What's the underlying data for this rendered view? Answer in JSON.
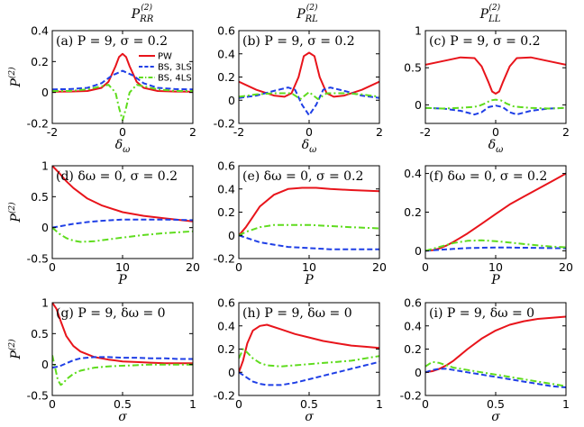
{
  "figure": {
    "column_titles": [
      "P_RR^(2)",
      "P_RL^(2)",
      "P_LL^(2)"
    ]
  },
  "legend": [
    "PW",
    "BS, 3LS",
    "BS, 4LS"
  ],
  "colors": {
    "PW": "#e8141b",
    "BS, 3LS": "#1f3fe6",
    "BS, 4LS": "#5fdc1e"
  },
  "chart_data": [
    {
      "id": "a",
      "type": "line",
      "annotation": "(a) P = 9, σ = 0.2",
      "xlabel": "δω",
      "ylabel": "P^(2)",
      "xlim": [
        -2,
        2
      ],
      "ylim": [
        -0.2,
        0.4
      ],
      "xticks": [
        -2,
        0,
        2
      ],
      "yticks": [
        -0.2,
        0,
        0.2,
        0.4
      ],
      "series": [
        {
          "name": "PW",
          "x": [
            -2,
            -1.5,
            -1,
            -0.6,
            -0.4,
            -0.2,
            -0.1,
            0,
            0.1,
            0.2,
            0.4,
            0.6,
            1,
            1.5,
            2
          ],
          "values": [
            0.005,
            0.006,
            0.01,
            0.03,
            0.07,
            0.17,
            0.23,
            0.25,
            0.23,
            0.17,
            0.07,
            0.03,
            0.01,
            0.006,
            0.005
          ]
        },
        {
          "name": "BS, 3LS",
          "x": [
            -2,
            -1.5,
            -1,
            -0.6,
            -0.3,
            0,
            0.3,
            0.6,
            1,
            1.5,
            2
          ],
          "values": [
            0.02,
            0.022,
            0.03,
            0.06,
            0.11,
            0.14,
            0.11,
            0.06,
            0.03,
            0.022,
            0.02
          ]
        },
        {
          "name": "BS, 4LS",
          "x": [
            -2,
            -1.5,
            -1,
            -0.6,
            -0.4,
            -0.2,
            -0.1,
            0,
            0.1,
            0.2,
            0.4,
            0.6,
            1,
            1.5,
            2
          ],
          "values": [
            0.01,
            0.01,
            0.02,
            0.04,
            0.05,
            0.0,
            -0.1,
            -0.18,
            -0.1,
            0.0,
            0.05,
            0.04,
            0.02,
            0.01,
            0.01
          ]
        }
      ]
    },
    {
      "id": "b",
      "type": "line",
      "annotation": "(b) P = 9, σ = 0.2",
      "xlabel": "δω",
      "ylabel": "",
      "xlim": [
        -2,
        2
      ],
      "ylim": [
        -0.2,
        0.6
      ],
      "xticks": [
        -2,
        0,
        2
      ],
      "yticks": [
        -0.2,
        0,
        0.2,
        0.4,
        0.6
      ],
      "series": [
        {
          "name": "PW",
          "x": [
            -2,
            -1.5,
            -1,
            -0.7,
            -0.5,
            -0.3,
            -0.15,
            0,
            0.15,
            0.3,
            0.5,
            0.7,
            1,
            1.5,
            2
          ],
          "values": [
            0.16,
            0.09,
            0.04,
            0.03,
            0.06,
            0.2,
            0.38,
            0.41,
            0.38,
            0.2,
            0.06,
            0.03,
            0.04,
            0.09,
            0.16
          ]
        },
        {
          "name": "BS, 3LS",
          "x": [
            -2,
            -1.5,
            -1,
            -0.6,
            -0.4,
            -0.2,
            0,
            0.2,
            0.4,
            0.6,
            1,
            1.5,
            2
          ],
          "values": [
            0.02,
            0.04,
            0.08,
            0.11,
            0.09,
            -0.04,
            -0.13,
            -0.04,
            0.09,
            0.11,
            0.08,
            0.04,
            0.02
          ]
        },
        {
          "name": "BS, 4LS",
          "x": [
            -2,
            -1.5,
            -1,
            -0.7,
            -0.5,
            -0.25,
            0,
            0.25,
            0.5,
            0.7,
            1,
            1.5,
            2
          ],
          "values": [
            0.03,
            0.05,
            0.06,
            0.06,
            0.06,
            0.01,
            0.07,
            0.01,
            0.06,
            0.06,
            0.06,
            0.05,
            0.03
          ]
        }
      ]
    },
    {
      "id": "c",
      "type": "line",
      "annotation": "(c) P = 9, σ = 0.2",
      "xlabel": "δω",
      "ylabel": "",
      "xlim": [
        -2,
        2
      ],
      "ylim": [
        -0.25,
        1
      ],
      "xticks": [
        -2,
        0,
        2
      ],
      "yticks": [
        0,
        0.5,
        1
      ],
      "series": [
        {
          "name": "PW",
          "x": [
            -2,
            -1.5,
            -1,
            -0.6,
            -0.4,
            -0.2,
            -0.1,
            0,
            0.1,
            0.2,
            0.4,
            0.6,
            1,
            1.5,
            2
          ],
          "values": [
            0.54,
            0.59,
            0.64,
            0.63,
            0.52,
            0.3,
            0.18,
            0.15,
            0.18,
            0.3,
            0.52,
            0.63,
            0.64,
            0.59,
            0.54
          ]
        },
        {
          "name": "BS, 3LS",
          "x": [
            -2,
            -1.5,
            -1,
            -0.6,
            -0.4,
            -0.2,
            0,
            0.2,
            0.4,
            0.6,
            1,
            1.5,
            2
          ],
          "values": [
            -0.04,
            -0.05,
            -0.08,
            -0.13,
            -0.1,
            -0.03,
            -0.01,
            -0.03,
            -0.1,
            -0.13,
            -0.08,
            -0.05,
            -0.04
          ]
        },
        {
          "name": "BS, 4LS",
          "x": [
            -2,
            -1.5,
            -1,
            -0.7,
            -0.5,
            -0.3,
            -0.15,
            0,
            0.15,
            0.3,
            0.5,
            0.7,
            1,
            1.5,
            2
          ],
          "values": [
            -0.04,
            -0.05,
            -0.04,
            -0.03,
            -0.02,
            0.02,
            0.06,
            0.07,
            0.06,
            0.02,
            -0.02,
            -0.03,
            -0.04,
            -0.05,
            -0.04
          ]
        }
      ]
    },
    {
      "id": "d",
      "type": "line",
      "annotation": "(d) δω = 0, σ = 0.2",
      "xlabel": "P",
      "ylabel": "P^(2)",
      "xlim": [
        0,
        20
      ],
      "ylim": [
        -0.5,
        1
      ],
      "xticks": [
        0,
        10,
        20
      ],
      "yticks": [
        -0.5,
        0,
        0.5,
        1
      ],
      "series": [
        {
          "name": "PW",
          "x": [
            0,
            1,
            2,
            3,
            5,
            7,
            10,
            13,
            16,
            20
          ],
          "values": [
            1.0,
            0.88,
            0.75,
            0.64,
            0.47,
            0.36,
            0.25,
            0.19,
            0.15,
            0.1
          ]
        },
        {
          "name": "BS, 3LS",
          "x": [
            0,
            1,
            2,
            3,
            5,
            7,
            10,
            13,
            16,
            20
          ],
          "values": [
            0.0,
            0.02,
            0.04,
            0.06,
            0.09,
            0.11,
            0.13,
            0.13,
            0.13,
            0.12
          ]
        },
        {
          "name": "BS, 4LS",
          "x": [
            0,
            1,
            2,
            3,
            4,
            6,
            8,
            10,
            13,
            16,
            20
          ],
          "values": [
            0.0,
            -0.1,
            -0.17,
            -0.21,
            -0.23,
            -0.22,
            -0.19,
            -0.16,
            -0.12,
            -0.09,
            -0.06
          ]
        }
      ]
    },
    {
      "id": "e",
      "type": "line",
      "annotation": "(e) δω = 0, σ = 0.2",
      "xlabel": "P",
      "ylabel": "",
      "xlim": [
        0,
        20
      ],
      "ylim": [
        -0.2,
        0.6
      ],
      "xticks": [
        0,
        10,
        20
      ],
      "yticks": [
        -0.2,
        0,
        0.2,
        0.4,
        0.6
      ],
      "series": [
        {
          "name": "PW",
          "x": [
            0,
            1,
            2,
            3,
            5,
            7,
            9,
            11,
            13,
            16,
            20
          ],
          "values": [
            0.0,
            0.07,
            0.16,
            0.25,
            0.35,
            0.4,
            0.41,
            0.41,
            0.4,
            0.39,
            0.38
          ]
        },
        {
          "name": "BS, 3LS",
          "x": [
            0,
            1,
            2,
            3,
            5,
            7,
            10,
            13,
            16,
            20
          ],
          "values": [
            0.0,
            -0.02,
            -0.04,
            -0.06,
            -0.08,
            -0.1,
            -0.11,
            -0.12,
            -0.12,
            -0.12
          ]
        },
        {
          "name": "BS, 4LS",
          "x": [
            0,
            1,
            2,
            3,
            5,
            7,
            10,
            13,
            16,
            20
          ],
          "values": [
            0.0,
            0.03,
            0.05,
            0.07,
            0.09,
            0.09,
            0.09,
            0.08,
            0.07,
            0.06
          ]
        }
      ]
    },
    {
      "id": "f",
      "type": "line",
      "annotation": "(f) δω = 0, σ = 0.2",
      "xlabel": "P",
      "ylabel": "",
      "xlim": [
        0,
        20
      ],
      "ylim": [
        -0.04,
        0.44
      ],
      "xticks": [
        0,
        10,
        20
      ],
      "yticks": [
        0,
        0.2,
        0.4
      ],
      "series": [
        {
          "name": "PW",
          "x": [
            0,
            1,
            2,
            3,
            4,
            6,
            8,
            10,
            12,
            14,
            16,
            18,
            20
          ],
          "values": [
            0.0,
            0.003,
            0.012,
            0.027,
            0.046,
            0.09,
            0.14,
            0.19,
            0.24,
            0.28,
            0.32,
            0.36,
            0.4
          ]
        },
        {
          "name": "BS, 3LS",
          "x": [
            0,
            2,
            4,
            6,
            8,
            10,
            12,
            14,
            16,
            18,
            20
          ],
          "values": [
            0.0,
            0.005,
            0.01,
            0.014,
            0.016,
            0.017,
            0.017,
            0.016,
            0.015,
            0.014,
            0.013
          ]
        },
        {
          "name": "BS, 4LS",
          "x": [
            0,
            2,
            4,
            6,
            8,
            10,
            12,
            14,
            16,
            18,
            20
          ],
          "values": [
            0.0,
            0.02,
            0.04,
            0.052,
            0.054,
            0.05,
            0.043,
            0.035,
            0.028,
            0.022,
            0.018
          ]
        }
      ]
    },
    {
      "id": "g",
      "type": "line",
      "annotation": "(g) P = 9, δω = 0",
      "xlabel": "σ",
      "ylabel": "P^(2)",
      "xlim": [
        0,
        1
      ],
      "ylim": [
        -0.5,
        1
      ],
      "xticks": [
        0,
        0.5,
        1
      ],
      "yticks": [
        -0.5,
        0,
        0.5,
        1
      ],
      "series": [
        {
          "name": "PW",
          "x": [
            0,
            0.03,
            0.06,
            0.1,
            0.15,
            0.2,
            0.3,
            0.4,
            0.5,
            0.6,
            0.7,
            0.8,
            0.9,
            1.0
          ],
          "values": [
            1.0,
            0.9,
            0.7,
            0.46,
            0.3,
            0.21,
            0.12,
            0.08,
            0.05,
            0.04,
            0.03,
            0.02,
            0.02,
            0.02
          ]
        },
        {
          "name": "BS, 3LS",
          "x": [
            0,
            0.05,
            0.1,
            0.15,
            0.2,
            0.3,
            0.4,
            0.5,
            0.6,
            0.7,
            0.8,
            0.9,
            1.0
          ],
          "values": [
            -0.05,
            -0.03,
            0.02,
            0.07,
            0.1,
            0.12,
            0.12,
            0.11,
            0.11,
            0.1,
            0.1,
            0.09,
            0.09
          ]
        },
        {
          "name": "BS, 4LS",
          "x": [
            0,
            0.02,
            0.04,
            0.06,
            0.08,
            0.1,
            0.15,
            0.2,
            0.3,
            0.4,
            0.5,
            0.6,
            0.7,
            0.8,
            0.9,
            1.0
          ],
          "values": [
            0.15,
            -0.05,
            -0.25,
            -0.33,
            -0.3,
            -0.24,
            -0.15,
            -0.1,
            -0.05,
            -0.03,
            -0.02,
            -0.01,
            0.0,
            0.0,
            0.0,
            0.0
          ]
        }
      ]
    },
    {
      "id": "h",
      "type": "line",
      "annotation": "(h) P = 9, δω = 0",
      "xlabel": "σ",
      "ylabel": "",
      "xlim": [
        0,
        1
      ],
      "ylim": [
        -0.2,
        0.6
      ],
      "xticks": [
        0,
        0.5,
        1
      ],
      "yticks": [
        -0.2,
        0,
        0.2,
        0.4,
        0.6
      ],
      "series": [
        {
          "name": "PW",
          "x": [
            0,
            0.03,
            0.06,
            0.1,
            0.15,
            0.2,
            0.3,
            0.4,
            0.5,
            0.6,
            0.7,
            0.8,
            0.9,
            1.0
          ],
          "values": [
            0.0,
            0.1,
            0.25,
            0.36,
            0.4,
            0.41,
            0.37,
            0.33,
            0.3,
            0.27,
            0.25,
            0.23,
            0.22,
            0.21
          ]
        },
        {
          "name": "BS, 3LS",
          "x": [
            0,
            0.05,
            0.1,
            0.15,
            0.2,
            0.3,
            0.4,
            0.5,
            0.6,
            0.7,
            0.8,
            0.9,
            1.0
          ],
          "values": [
            0.0,
            -0.04,
            -0.08,
            -0.1,
            -0.11,
            -0.11,
            -0.09,
            -0.06,
            -0.03,
            0.0,
            0.03,
            0.06,
            0.09
          ]
        },
        {
          "name": "BS, 4LS",
          "x": [
            0,
            0.03,
            0.06,
            0.1,
            0.15,
            0.2,
            0.3,
            0.4,
            0.5,
            0.6,
            0.7,
            0.8,
            0.9,
            1.0
          ],
          "values": [
            0.12,
            0.2,
            0.17,
            0.12,
            0.08,
            0.06,
            0.05,
            0.06,
            0.07,
            0.08,
            0.09,
            0.1,
            0.12,
            0.14
          ]
        }
      ]
    },
    {
      "id": "i",
      "type": "line",
      "annotation": "(i) P = 9, δω = 0",
      "xlabel": "σ",
      "ylabel": "",
      "xlim": [
        0,
        1
      ],
      "ylim": [
        -0.2,
        0.6
      ],
      "xticks": [
        0,
        0.5,
        1
      ],
      "yticks": [
        -0.2,
        0,
        0.2,
        0.4,
        0.6
      ],
      "series": [
        {
          "name": "PW",
          "x": [
            0,
            0.05,
            0.1,
            0.15,
            0.2,
            0.3,
            0.4,
            0.5,
            0.6,
            0.7,
            0.8,
            0.9,
            1.0
          ],
          "values": [
            0.0,
            0.01,
            0.03,
            0.06,
            0.1,
            0.2,
            0.29,
            0.36,
            0.41,
            0.44,
            0.46,
            0.47,
            0.48
          ]
        },
        {
          "name": "BS, 3LS",
          "x": [
            0,
            0.05,
            0.1,
            0.15,
            0.2,
            0.3,
            0.4,
            0.5,
            0.6,
            0.7,
            0.8,
            0.9,
            1.0
          ],
          "values": [
            0.0,
            0.02,
            0.03,
            0.03,
            0.02,
            0.0,
            -0.02,
            -0.04,
            -0.06,
            -0.08,
            -0.1,
            -0.12,
            -0.13
          ]
        },
        {
          "name": "BS, 4LS",
          "x": [
            0,
            0.05,
            0.1,
            0.15,
            0.2,
            0.3,
            0.4,
            0.5,
            0.6,
            0.7,
            0.8,
            0.9,
            1.0
          ],
          "values": [
            0.05,
            0.09,
            0.08,
            0.06,
            0.04,
            0.02,
            0.0,
            -0.02,
            -0.04,
            -0.06,
            -0.08,
            -0.1,
            -0.12
          ]
        }
      ]
    }
  ]
}
